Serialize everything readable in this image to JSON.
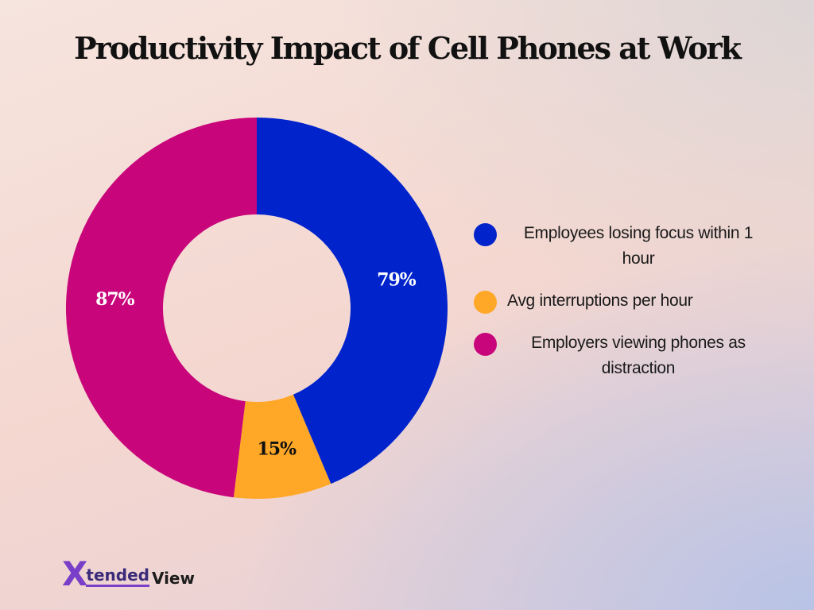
{
  "page": {
    "title": "Productivity Impact of Cell Phones at Work"
  },
  "chart_data": {
    "type": "pie",
    "subtype": "donut",
    "title": "Productivity Impact of Cell Phones at Work",
    "legend_position": "right",
    "slices": [
      {
        "label": "Employees losing focus within 1 hour",
        "value": 79,
        "display": "79%",
        "color": "#0023cc",
        "label_color": "#ffffff"
      },
      {
        "label": "Avg interruptions per hour",
        "value": 15,
        "display": "15%",
        "color": "#ffa726",
        "label_color": "#111111"
      },
      {
        "label": "Employers viewing phones as distraction",
        "value": 87,
        "display": "87%",
        "color": "#c8057a",
        "label_color": "#ffffff"
      }
    ]
  },
  "brand": {
    "logo_mark": "X",
    "logo_part1": "tended",
    "logo_part2": "View",
    "accent": "#7a3fc9"
  }
}
